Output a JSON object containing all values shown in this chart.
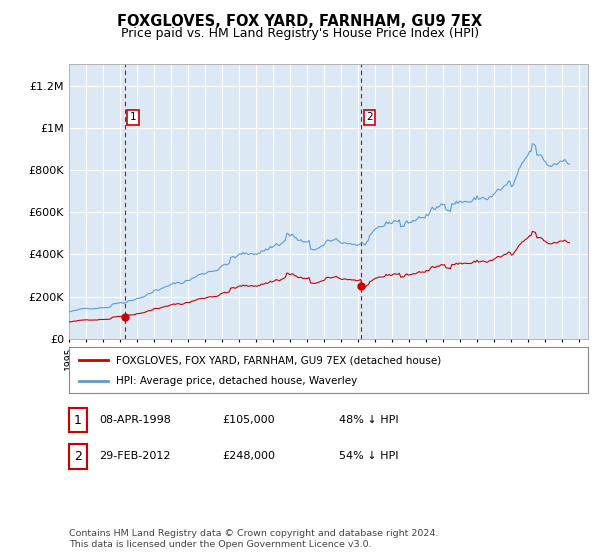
{
  "title": "FOXGLOVES, FOX YARD, FARNHAM, GU9 7EX",
  "subtitle": "Price paid vs. HM Land Registry's House Price Index (HPI)",
  "title_fontsize": 10.5,
  "subtitle_fontsize": 9,
  "ylim": [
    0,
    1300000
  ],
  "ytick_labels": [
    "£0",
    "£200K",
    "£400K",
    "£600K",
    "£800K",
    "£1M",
    "£1.2M"
  ],
  "ytick_values": [
    0,
    200000,
    400000,
    600000,
    800000,
    1000000,
    1200000
  ],
  "background_color": "#ffffff",
  "plot_bg_color": "#dce9f5",
  "grid_color": "#ffffff",
  "hpi_color": "#5b9bd5",
  "price_color": "#cc0000",
  "sale1_x": 1998.27,
  "sale1_price": 105000,
  "sale2_x": 2012.16,
  "sale2_price": 248000,
  "legend_house_label": "FOXGLOVES, FOX YARD, FARNHAM, GU9 7EX (detached house)",
  "legend_hpi_label": "HPI: Average price, detached house, Waverley",
  "table_row1": [
    "1",
    "08-APR-1998",
    "£105,000",
    "48% ↓ HPI"
  ],
  "table_row2": [
    "2",
    "29-FEB-2012",
    "£248,000",
    "54% ↓ HPI"
  ],
  "footer": "Contains HM Land Registry data © Crown copyright and database right 2024.\nThis data is licensed under the Open Government Licence v3.0.",
  "xmin": 1995,
  "xmax": 2025.5
}
